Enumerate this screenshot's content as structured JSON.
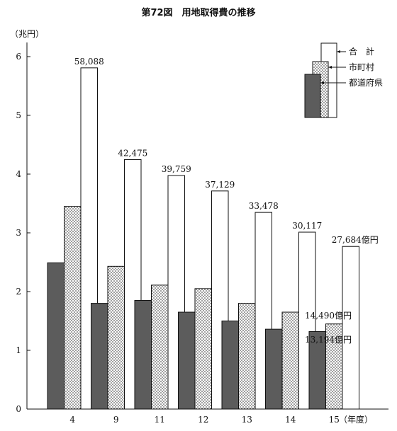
{
  "chart_data": {
    "type": "bar",
    "title": "第72図　用地取得費の推移",
    "ylabel": "（兆円）",
    "xlabel": "（年度）",
    "ylim": [
      0,
      6
    ],
    "yticks": [
      "0",
      "1",
      "2",
      "3",
      "4",
      "5",
      "6"
    ],
    "categories": [
      "4",
      "9",
      "11",
      "12",
      "13",
      "14",
      "15"
    ],
    "series": [
      {
        "name": "都道府県",
        "values": [
          2.49,
          1.8,
          1.85,
          1.65,
          1.5,
          1.36,
          1.3194
        ],
        "pattern": "solid",
        "color": "#5c5c5c"
      },
      {
        "name": "市町村",
        "values": [
          3.45,
          2.43,
          2.11,
          2.05,
          1.8,
          1.65,
          1.449
        ],
        "pattern": "dotted",
        "color": "#ffffff"
      },
      {
        "name": "合計",
        "values": [
          5.8088,
          4.2475,
          3.9759,
          3.7129,
          3.3478,
          3.0117,
          2.7684
        ],
        "pattern": "white",
        "color": "#ffffff"
      }
    ],
    "total_labels": [
      "58,088",
      "42,475",
      "39,759",
      "37,129",
      "33,478",
      "30,117",
      "27,684億円"
    ],
    "extra_labels": {
      "municipal_last": "14,490億円",
      "prefecture_last": "13,194億円"
    },
    "legend": {
      "placement": "top-right",
      "items": [
        "合　計",
        "市町村",
        "都道府県"
      ]
    }
  }
}
